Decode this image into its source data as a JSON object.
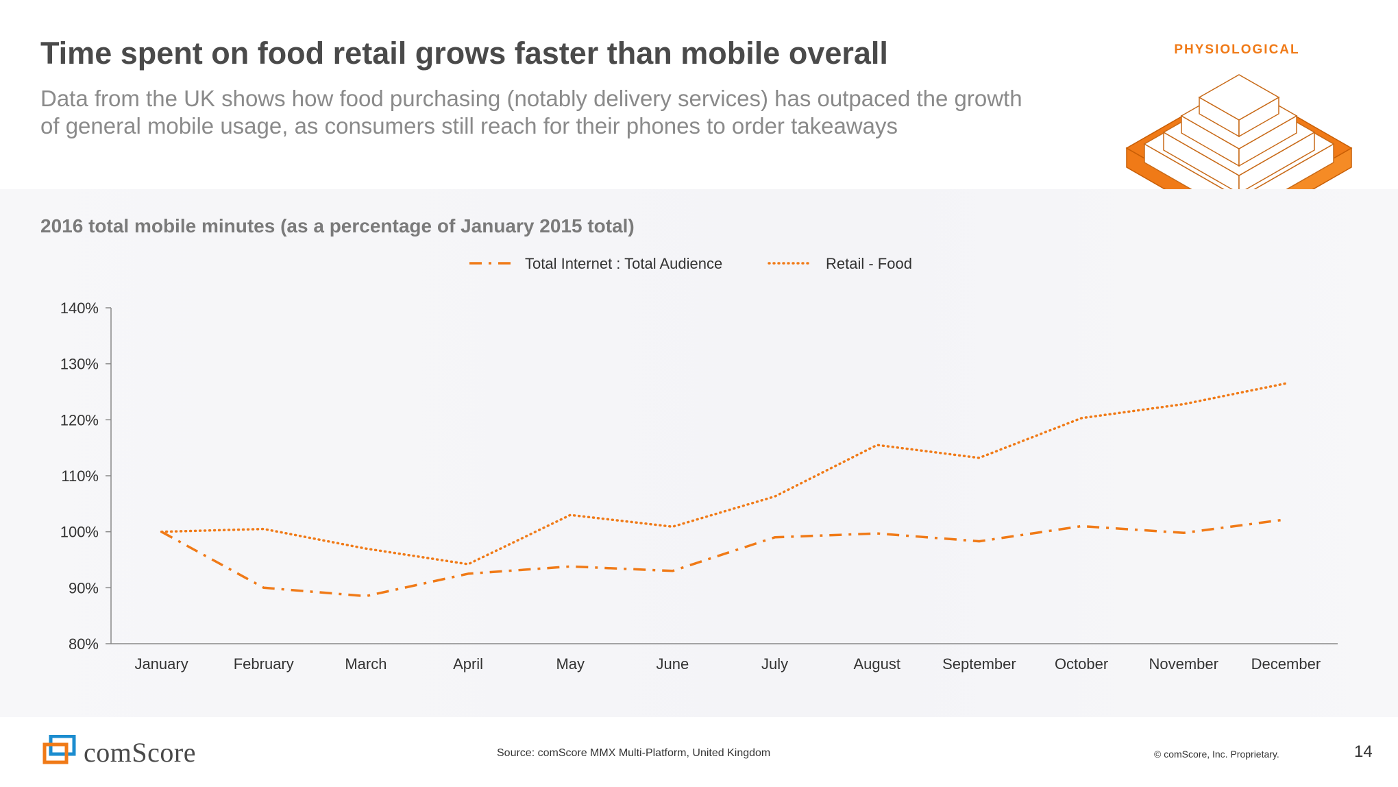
{
  "header": {
    "title": "Time spent on food retail grows faster than mobile overall",
    "subtitle": "Data from the UK shows how food purchasing (notably delivery services) has outpaced the growth of general mobile usage, as consumers still reach for their phones to order takeaways",
    "category_tag": "PHYSIOLOGICAL"
  },
  "chart_data": {
    "type": "line",
    "title": "2016 total mobile minutes (as a percentage of January 2015 total)",
    "xlabel": "",
    "ylabel": "",
    "ylim": [
      80,
      140
    ],
    "ytick_step": 10,
    "ytick_labels": [
      "80%",
      "90%",
      "100%",
      "110%",
      "120%",
      "130%",
      "140%"
    ],
    "categories": [
      "January",
      "February",
      "March",
      "April",
      "May",
      "June",
      "July",
      "August",
      "September",
      "October",
      "November",
      "December"
    ],
    "series": [
      {
        "name": "Total Internet : Total Audience",
        "style": "dash-dot",
        "color": "#f07a17",
        "values": [
          100.0,
          90.0,
          88.5,
          92.5,
          93.8,
          93.0,
          99.0,
          99.7,
          98.3,
          101.0,
          99.8,
          102.2
        ]
      },
      {
        "name": "Retail - Food",
        "style": "dotted",
        "color": "#f07a17",
        "values": [
          100.0,
          100.5,
          97.0,
          94.2,
          103.0,
          100.9,
          106.3,
          115.5,
          113.2,
          120.3,
          122.8,
          126.5
        ]
      }
    ],
    "legend_position": "top-center",
    "grid": false
  },
  "footer": {
    "logo_text": "comScore",
    "source": "Source: comScore MMX Multi-Platform, United Kingdom",
    "copyright": "© comScore, Inc. Proprietary.",
    "page_number": "14"
  },
  "colors": {
    "accent": "#f07a17",
    "title": "#4a4a4a",
    "subtitle": "#8a8a8a",
    "logo_orange": "#f07a17",
    "logo_blue": "#1b8ccf"
  }
}
